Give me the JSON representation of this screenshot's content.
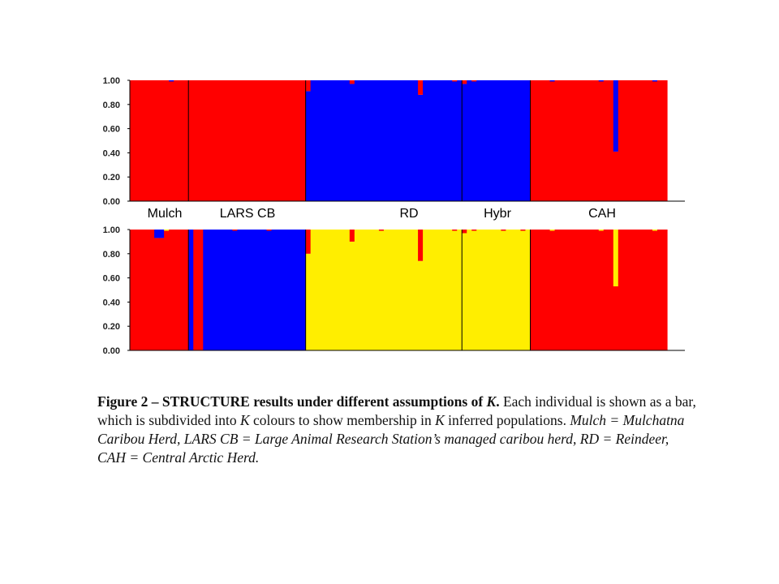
{
  "chart_data": [
    {
      "type": "bar",
      "stacked": true,
      "ylim": [
        0,
        1
      ],
      "yticks": [
        "1.00",
        "0.80",
        "0.60",
        "0.40",
        "0.20",
        "0.00"
      ],
      "group_labels": [
        "Mulch",
        "LARS CB",
        "RD",
        "Hybr",
        "CAH"
      ],
      "groups": [
        {
          "name": "Mulch",
          "n": 12
        },
        {
          "name": "LARS CB",
          "n": 24
        },
        {
          "name": "RD",
          "n": 32
        },
        {
          "name": "Hybr",
          "n": 14
        },
        {
          "name": "CAH",
          "n": 28
        }
      ],
      "colors": [
        "#ff0000",
        "#0000ff"
      ],
      "base_cluster": [
        0,
        0,
        1,
        1,
        0
      ],
      "deviations": [
        {
          "i": 8,
          "cluster": 1,
          "value": 0.01
        },
        {
          "i": 36,
          "cluster": 0,
          "value": 0.09
        },
        {
          "i": 45,
          "cluster": 0,
          "value": 0.03
        },
        {
          "i": 59,
          "cluster": 0,
          "value": 0.12
        },
        {
          "i": 66,
          "cluster": 0,
          "value": 0.01
        },
        {
          "i": 68,
          "cluster": 0,
          "value": 0.03
        },
        {
          "i": 70,
          "cluster": 0,
          "value": 0.01
        },
        {
          "i": 86,
          "cluster": 1,
          "value": 0.01
        },
        {
          "i": 96,
          "cluster": 1,
          "value": 0.01
        },
        {
          "i": 99,
          "cluster": 1,
          "value": 0.59
        },
        {
          "i": 107,
          "cluster": 1,
          "value": 0.01
        }
      ]
    },
    {
      "type": "bar",
      "stacked": true,
      "ylim": [
        0,
        1
      ],
      "yticks": [
        "1.00",
        "0.80",
        "0.60",
        "0.40",
        "0.20",
        "0.00"
      ],
      "groups": [
        {
          "name": "Mulch",
          "n": 12
        },
        {
          "name": "LARS CB",
          "n": 24
        },
        {
          "name": "RD",
          "n": 32
        },
        {
          "name": "Hybr",
          "n": 14
        },
        {
          "name": "CAH",
          "n": 28
        }
      ],
      "colors": [
        "#ff0000",
        "#0000ff",
        "#ffee00"
      ],
      "base_cluster": [
        0,
        1,
        2,
        2,
        0
      ],
      "deviations": [
        {
          "i": 5,
          "cluster": 1,
          "value": 0.07
        },
        {
          "i": 6,
          "cluster": 1,
          "value": 0.07
        },
        {
          "i": 7,
          "cluster": 2,
          "value": 0.01
        },
        {
          "i": 13,
          "cluster": 0,
          "value": 1.0
        },
        {
          "i": 14,
          "cluster": 0,
          "value": 1.0
        },
        {
          "i": 21,
          "cluster": 0,
          "value": 0.01
        },
        {
          "i": 28,
          "cluster": 0,
          "value": 0.01
        },
        {
          "i": 36,
          "cluster": 0,
          "value": 0.2
        },
        {
          "i": 45,
          "cluster": 0,
          "value": 0.1
        },
        {
          "i": 51,
          "cluster": 0,
          "value": 0.01
        },
        {
          "i": 59,
          "cluster": 0,
          "value": 0.26
        },
        {
          "i": 66,
          "cluster": 0,
          "value": 0.01
        },
        {
          "i": 68,
          "cluster": 0,
          "value": 0.03
        },
        {
          "i": 70,
          "cluster": 0,
          "value": 0.01
        },
        {
          "i": 76,
          "cluster": 0,
          "value": 0.01
        },
        {
          "i": 80,
          "cluster": 0,
          "value": 0.01
        },
        {
          "i": 86,
          "cluster": 2,
          "value": 0.01
        },
        {
          "i": 96,
          "cluster": 2,
          "value": 0.01
        },
        {
          "i": 99,
          "cluster": 2,
          "value": 0.47
        },
        {
          "i": 107,
          "cluster": 2,
          "value": 0.01
        }
      ]
    }
  ],
  "caption": {
    "lead": "Figure 2 – STRUCTURE results under different assumptions of ",
    "k": "K",
    "lead_end": ".",
    "p1": " Each individual is shown as a bar, which is subdivided into ",
    "p2": " colours to show membership in ",
    "p3": " inferred populations. ",
    "abbrev": "Mulch = Mulchatna Caribou Herd, LARS CB = Large Animal Research Station’s managed caribou herd, RD = Reindeer, CAH = Central Arctic Herd."
  }
}
